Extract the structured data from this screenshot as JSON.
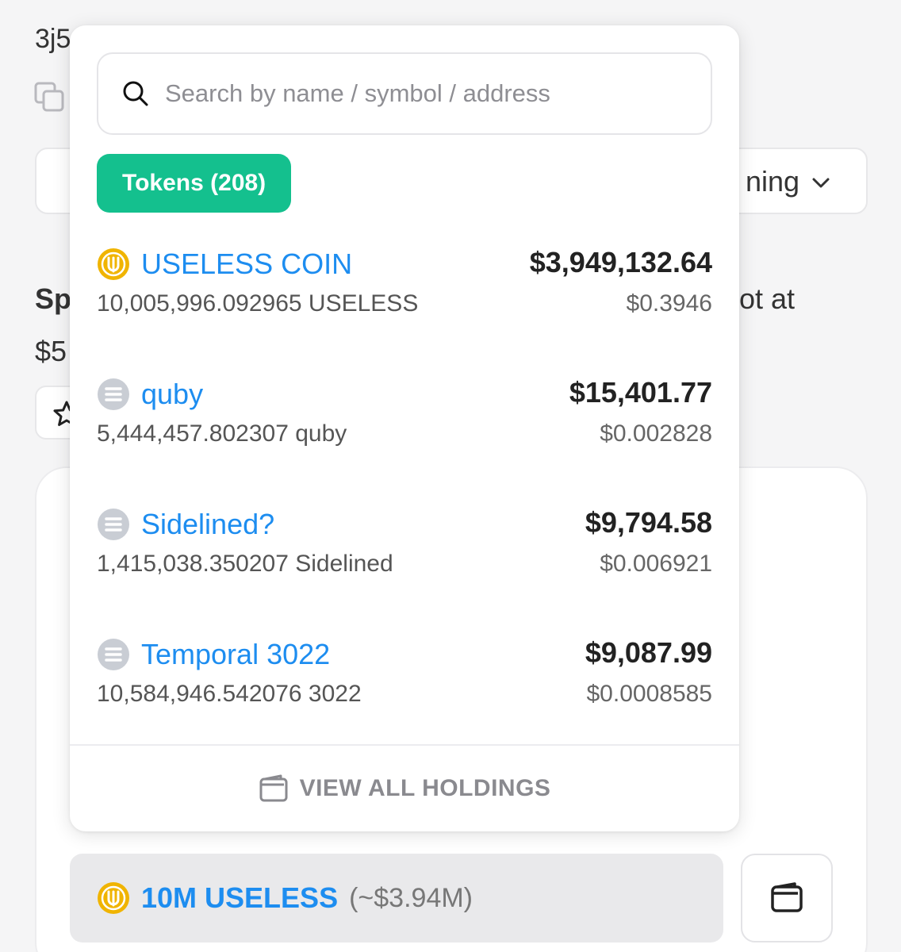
{
  "background": {
    "address_fragment": "3j5",
    "select_label_fragment": "ning",
    "heading_fragment_left": "Sp",
    "heading_fragment_right": "ot at",
    "price_fragment": "$5",
    "amount": {
      "value": "10M USELESS",
      "usd": "(~$3.94M)",
      "icon": "useless-coin-icon"
    }
  },
  "dropdown": {
    "search_placeholder": "Search by name / symbol / address",
    "search_value": "",
    "tab_label": "Tokens (208)",
    "tokens": [
      {
        "name": "USELESS COIN",
        "amount": "10,005,996.092965 USELESS",
        "value": "$3,949,132.64",
        "price": "$0.3946",
        "icon": "useless-coin-icon"
      },
      {
        "name": "quby",
        "amount": "5,444,457.802307 quby",
        "value": "$15,401.77",
        "price": "$0.002828",
        "icon": "solana-icon"
      },
      {
        "name": "Sidelined?",
        "amount": "1,415,038.350207 Sidelined",
        "value": "$9,794.58",
        "price": "$0.006921",
        "icon": "solana-icon"
      },
      {
        "name": "Temporal 3022",
        "amount": "10,584,946.542076 3022",
        "value": "$9,087.99",
        "price": "$0.0008585",
        "icon": "solana-icon"
      }
    ],
    "view_all_label": "VIEW ALL HOLDINGS"
  },
  "colors": {
    "accent_green": "#14c08e",
    "link_blue": "#1d8df0",
    "coin_gold": "#f0b400"
  }
}
